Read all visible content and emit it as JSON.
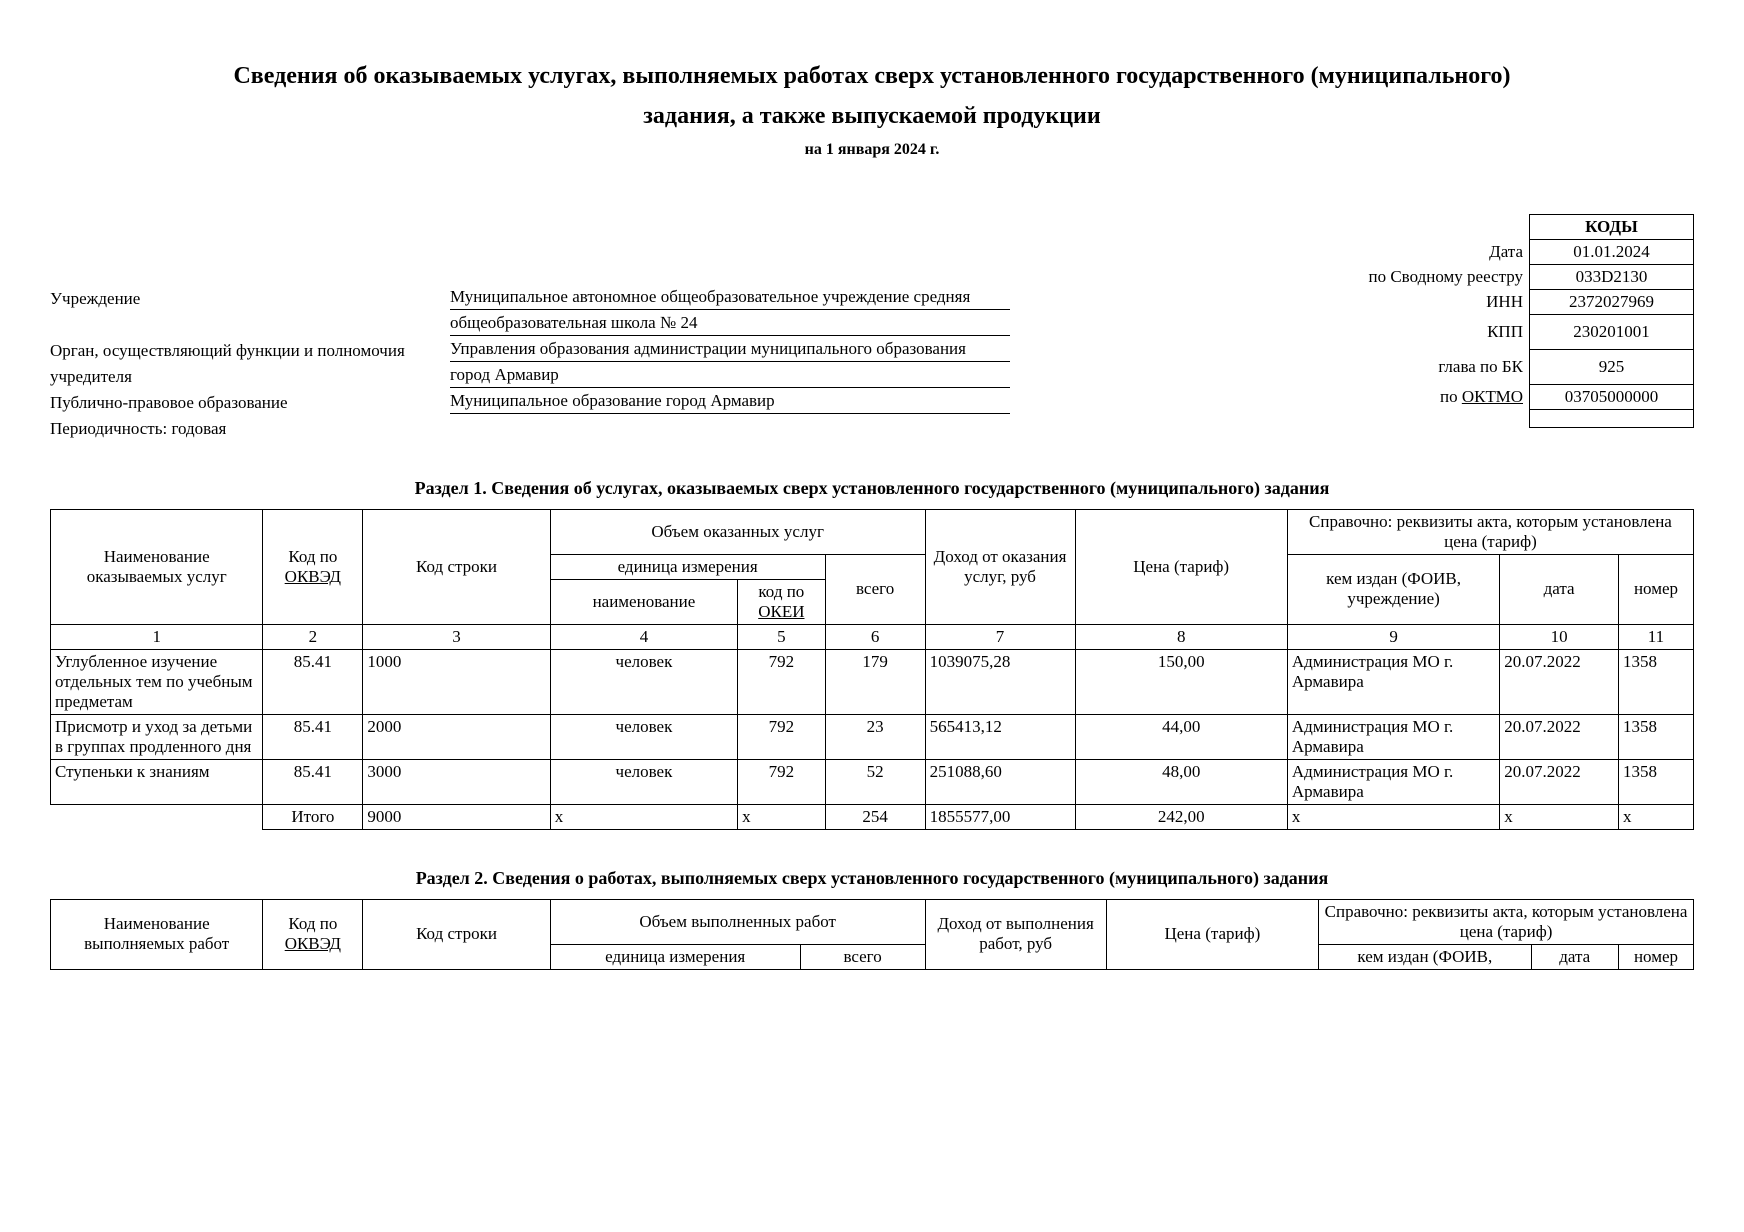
{
  "title_line1": "Сведения об оказываемых услугах, выполняемых работах сверх установленного государственного (муниципального)",
  "title_line2": "задания, а также выпускаемой продукции",
  "as_of": "на 1  января  2024  г.",
  "codes": {
    "header": "КОДЫ",
    "rows": [
      {
        "label": "Дата",
        "value": "01.01.2024"
      },
      {
        "label": "по Сводному реестру",
        "value": "033D2130"
      },
      {
        "label": "ИНН",
        "value": "2372027969"
      },
      {
        "label": "КПП",
        "value": "230201001"
      },
      {
        "label": "глава по БК",
        "value": "925"
      },
      {
        "label": "по ОКТМО",
        "value": "03705000000",
        "label_underline": true
      },
      {
        "label": "",
        "value": ""
      }
    ]
  },
  "info": {
    "institution_label": "Учреждение",
    "institution_value1": "Муниципальное автономное общеобразовательное учреждение средняя",
    "institution_value2": "общеобразовательная школа № 24",
    "founder_label1": "Орган, осуществляющий функции и полномочия",
    "founder_label2": "учредителя",
    "founder_value1": "Управления образования администрации муниципального образования",
    "founder_value2": "город Армавир",
    "ppo_label": "Публично-правовое образование",
    "ppo_value": "Муниципальное образование город Армавир",
    "periodicity": "Периодичность: годовая"
  },
  "section1_title": "Раздел 1. Сведения об услугах, оказываемых сверх установленного государственного (муниципального) задания",
  "table1": {
    "head": {
      "c1": "Наименование оказываемых услуг",
      "c2a": "Код по",
      "c2b": "ОКВЭД",
      "c3": "Код строки",
      "c456": "Объем оказанных услуг",
      "c45": "единица измерения",
      "c4": "наименование",
      "c5a": "код по",
      "c5b": "ОКЕИ",
      "c6": "всего",
      "c7": "Доход от оказания услуг, руб",
      "c8": "Цена (тариф)",
      "c9_10_11": "Справочно: реквизиты акта, которым установлена цена (тариф)",
      "c9": "кем издан (ФОИВ, учреждение)",
      "c10": "дата",
      "c11": "номер"
    },
    "numrow": [
      "1",
      "2",
      "3",
      "4",
      "5",
      "6",
      "7",
      "8",
      "9",
      "10",
      "11"
    ],
    "rows": [
      {
        "c1": "Углубленное изучение отдельных тем по учебным предметам",
        "c2": "85.41",
        "c3": "1000",
        "c4": "человек",
        "c5": "792",
        "c6": "179",
        "c7": "1039075,28",
        "c8": "150,00",
        "c9": "Администрация МО г. Армавира",
        "c10": "20.07.2022",
        "c11": "1358"
      },
      {
        "c1": "Присмотр и уход за детьми в группах продленного дня",
        "c2": "85.41",
        "c3": "2000",
        "c4": "человек",
        "c5": "792",
        "c6": "23",
        "c7": "565413,12",
        "c8": "44,00",
        "c9": "Администрация МО г. Армавира",
        "c10": "20.07.2022",
        "c11": "1358"
      },
      {
        "c1": "Ступеньки к знаниям",
        "c2": "85.41",
        "c3": "3000",
        "c4": "человек",
        "c5": "792",
        "c6": "52",
        "c7": "251088,60",
        "c8": "48,00",
        "c9": "Администрация МО г. Армавира",
        "c10": "20.07.2022",
        "c11": "1358"
      }
    ],
    "total": {
      "c1": "",
      "c2": "Итого",
      "c3": "9000",
      "c4": "x",
      "c5": "x",
      "c6": "254",
      "c7": "1855577,00",
      "c8": "242,00",
      "c9": "x",
      "c10": "x",
      "c11": "x"
    }
  },
  "section2_title": "Раздел 2. Сведения о работах, выполняемых сверх установленного государственного (муниципального) задания",
  "table2": {
    "head": {
      "c1": "Наименование выполняемых работ",
      "c2a": "Код по",
      "c2b": "ОКВЭД",
      "c3": "Код строки",
      "c456": "Объем выполненных работ",
      "c45": "единица измерения",
      "c6": "всего",
      "c7": "Доход от выполнения работ, руб",
      "c8": "Цена (тариф)",
      "c9_10_11": "Справочно: реквизиты акта, которым установлена цена (тариф)",
      "c9": "кем издан (ФОИВ,",
      "c10": "дата",
      "c11": "номер"
    }
  }
}
